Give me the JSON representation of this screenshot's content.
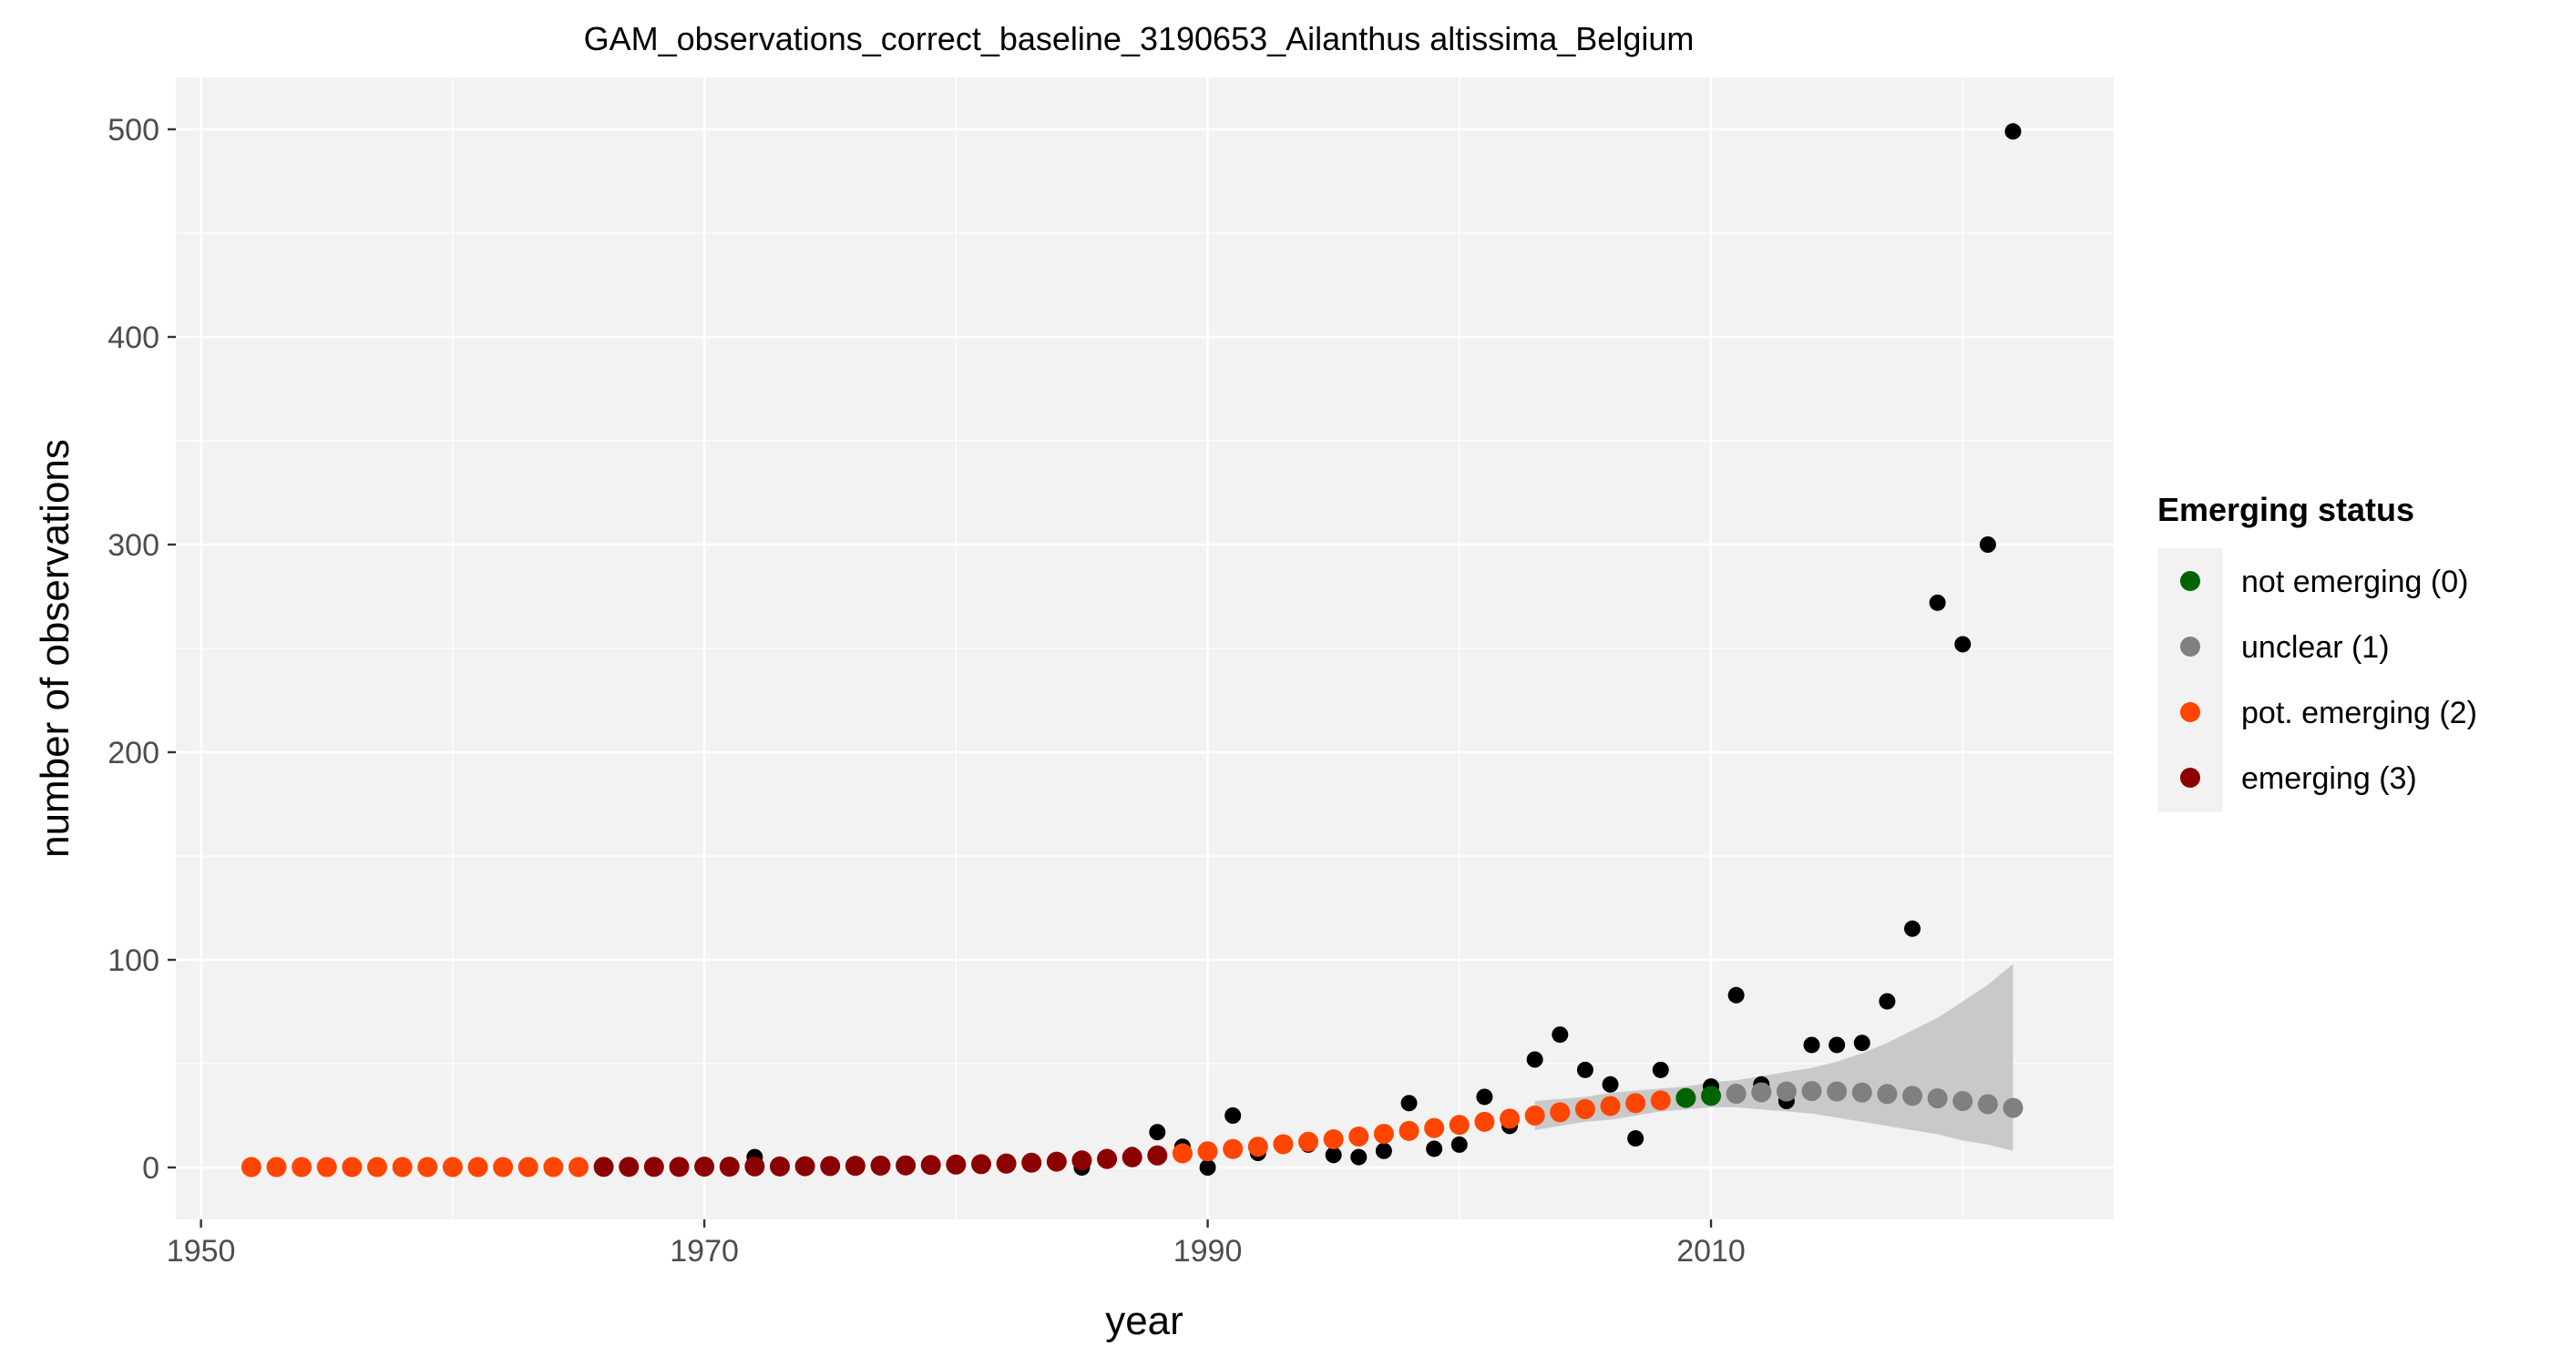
{
  "chart_data": {
    "type": "scatter",
    "title": "GAM_observations_correct_baseline_3190653_Ailanthus altissima_Belgium",
    "xlabel": "year",
    "ylabel": "number of observations",
    "xlim": [
      1949,
      2026
    ],
    "ylim": [
      -25,
      525
    ],
    "x_ticks": [
      1950,
      1970,
      1990,
      2010
    ],
    "y_ticks": [
      0,
      100,
      200,
      300,
      400,
      500
    ],
    "grid": true,
    "legend": {
      "title": "Emerging status",
      "placement": "right",
      "entries": [
        {
          "label": "not emerging (0)",
          "color": "#006400"
        },
        {
          "label": "unclear (1)",
          "color": "#808080"
        },
        {
          "label": "pot. emerging (2)",
          "color": "#FF4500"
        },
        {
          "label": "emerging (3)",
          "color": "#8B0000"
        }
      ]
    },
    "observations": {
      "color": "#000000",
      "x": [
        1952,
        1953,
        1954,
        1955,
        1956,
        1957,
        1958,
        1959,
        1960,
        1961,
        1962,
        1963,
        1964,
        1965,
        1966,
        1967,
        1968,
        1969,
        1970,
        1971,
        1972,
        1973,
        1974,
        1975,
        1976,
        1977,
        1978,
        1979,
        1980,
        1981,
        1982,
        1983,
        1984,
        1985,
        1986,
        1987,
        1988,
        1989,
        1990,
        1991,
        1992,
        1993,
        1994,
        1995,
        1996,
        1997,
        1998,
        1999,
        2000,
        2001,
        2002,
        2003,
        2004,
        2005,
        2006,
        2007,
        2008,
        2009,
        2010,
        2011,
        2012,
        2013,
        2014,
        2015,
        2016,
        2017,
        2018,
        2019,
        2020,
        2021,
        2022
      ],
      "y": [
        0,
        0,
        0,
        0,
        0,
        0,
        0,
        0,
        0,
        0,
        0,
        0,
        0,
        0,
        0,
        0,
        0,
        0,
        0,
        0,
        5,
        1,
        1,
        1,
        1,
        1,
        1,
        1,
        1,
        1,
        1,
        3,
        3,
        0,
        5,
        6,
        17,
        10,
        0,
        25,
        7,
        11,
        11,
        6,
        5,
        8,
        31,
        9,
        11,
        34,
        20,
        52,
        64,
        47,
        40,
        14,
        47,
        34,
        39,
        83,
        40,
        32,
        59,
        59,
        60,
        80,
        115,
        272,
        252,
        300,
        499
      ]
    },
    "fitted": {
      "x": [
        1952,
        1953,
        1954,
        1955,
        1956,
        1957,
        1958,
        1959,
        1960,
        1961,
        1962,
        1963,
        1964,
        1965,
        1966,
        1967,
        1968,
        1969,
        1970,
        1971,
        1972,
        1973,
        1974,
        1975,
        1976,
        1977,
        1978,
        1979,
        1980,
        1981,
        1982,
        1983,
        1984,
        1985,
        1986,
        1987,
        1988,
        1989,
        1990,
        1991,
        1992,
        1993,
        1994,
        1995,
        1996,
        1997,
        1998,
        1999,
        2000,
        2001,
        2002,
        2003,
        2004,
        2005,
        2006,
        2007,
        2008,
        2009,
        2010,
        2011,
        2012,
        2013,
        2014,
        2015,
        2016,
        2017,
        2018,
        2019,
        2020,
        2021,
        2022
      ],
      "y": [
        0.2,
        0.2,
        0.2,
        0.2,
        0.2,
        0.2,
        0.2,
        0.2,
        0.2,
        0.2,
        0.2,
        0.2,
        0.2,
        0.2,
        0.3,
        0.3,
        0.3,
        0.3,
        0.4,
        0.4,
        0.5,
        0.5,
        0.6,
        0.7,
        0.8,
        0.9,
        1.0,
        1.2,
        1.4,
        1.6,
        1.9,
        2.3,
        2.8,
        3.4,
        4.1,
        4.9,
        5.8,
        6.8,
        7.8,
        8.9,
        10.0,
        11.2,
        12.4,
        13.6,
        14.9,
        16.2,
        17.6,
        19.0,
        20.5,
        22.0,
        23.5,
        25.0,
        26.6,
        28.1,
        29.6,
        31.0,
        32.3,
        33.5,
        34.5,
        35.5,
        36.2,
        36.6,
        36.8,
        36.6,
        36.1,
        35.4,
        34.5,
        33.3,
        32.0,
        30.5,
        28.7
      ],
      "status": [
        2,
        2,
        2,
        2,
        2,
        2,
        2,
        2,
        2,
        2,
        2,
        2,
        2,
        2,
        3,
        3,
        3,
        3,
        3,
        3,
        3,
        3,
        3,
        3,
        3,
        3,
        3,
        3,
        3,
        3,
        3,
        3,
        3,
        3,
        3,
        3,
        3,
        2,
        2,
        2,
        2,
        2,
        2,
        2,
        2,
        2,
        2,
        2,
        2,
        2,
        2,
        2,
        2,
        2,
        2,
        2,
        2,
        0,
        0,
        1,
        1,
        1,
        1,
        1,
        1,
        1,
        1,
        1,
        1,
        1,
        1
      ],
      "ci_lower": [
        0,
        0,
        0,
        0,
        0,
        0,
        0,
        0,
        0,
        0,
        0,
        0,
        0,
        0,
        0,
        0,
        0,
        0,
        0,
        0,
        0,
        0,
        0,
        0,
        0,
        0,
        0,
        0,
        0,
        0,
        0,
        0,
        0,
        0,
        0,
        0,
        0,
        0,
        0,
        0,
        0,
        0,
        0,
        0,
        0,
        0,
        0,
        0,
        0,
        0,
        0,
        18,
        20,
        22,
        23,
        25,
        27,
        28,
        29,
        29,
        28,
        27,
        26,
        24,
        22,
        20,
        18,
        16,
        13,
        11,
        8
      ],
      "ci_upper": [
        0,
        0,
        0,
        0,
        0,
        0,
        0,
        0,
        0,
        0,
        0,
        0,
        0,
        0,
        0,
        0,
        0,
        0,
        0,
        0,
        0,
        0,
        0,
        0,
        0,
        0,
        0,
        0,
        0,
        0,
        0,
        0,
        0,
        0,
        0,
        0,
        0,
        0,
        0,
        0,
        0,
        0,
        0,
        0,
        0,
        0,
        0,
        0,
        0,
        0,
        0,
        32,
        33,
        34,
        36,
        37,
        38,
        39,
        41,
        42,
        44,
        46,
        48,
        51,
        55,
        60,
        66,
        72,
        80,
        88,
        98
      ]
    }
  }
}
